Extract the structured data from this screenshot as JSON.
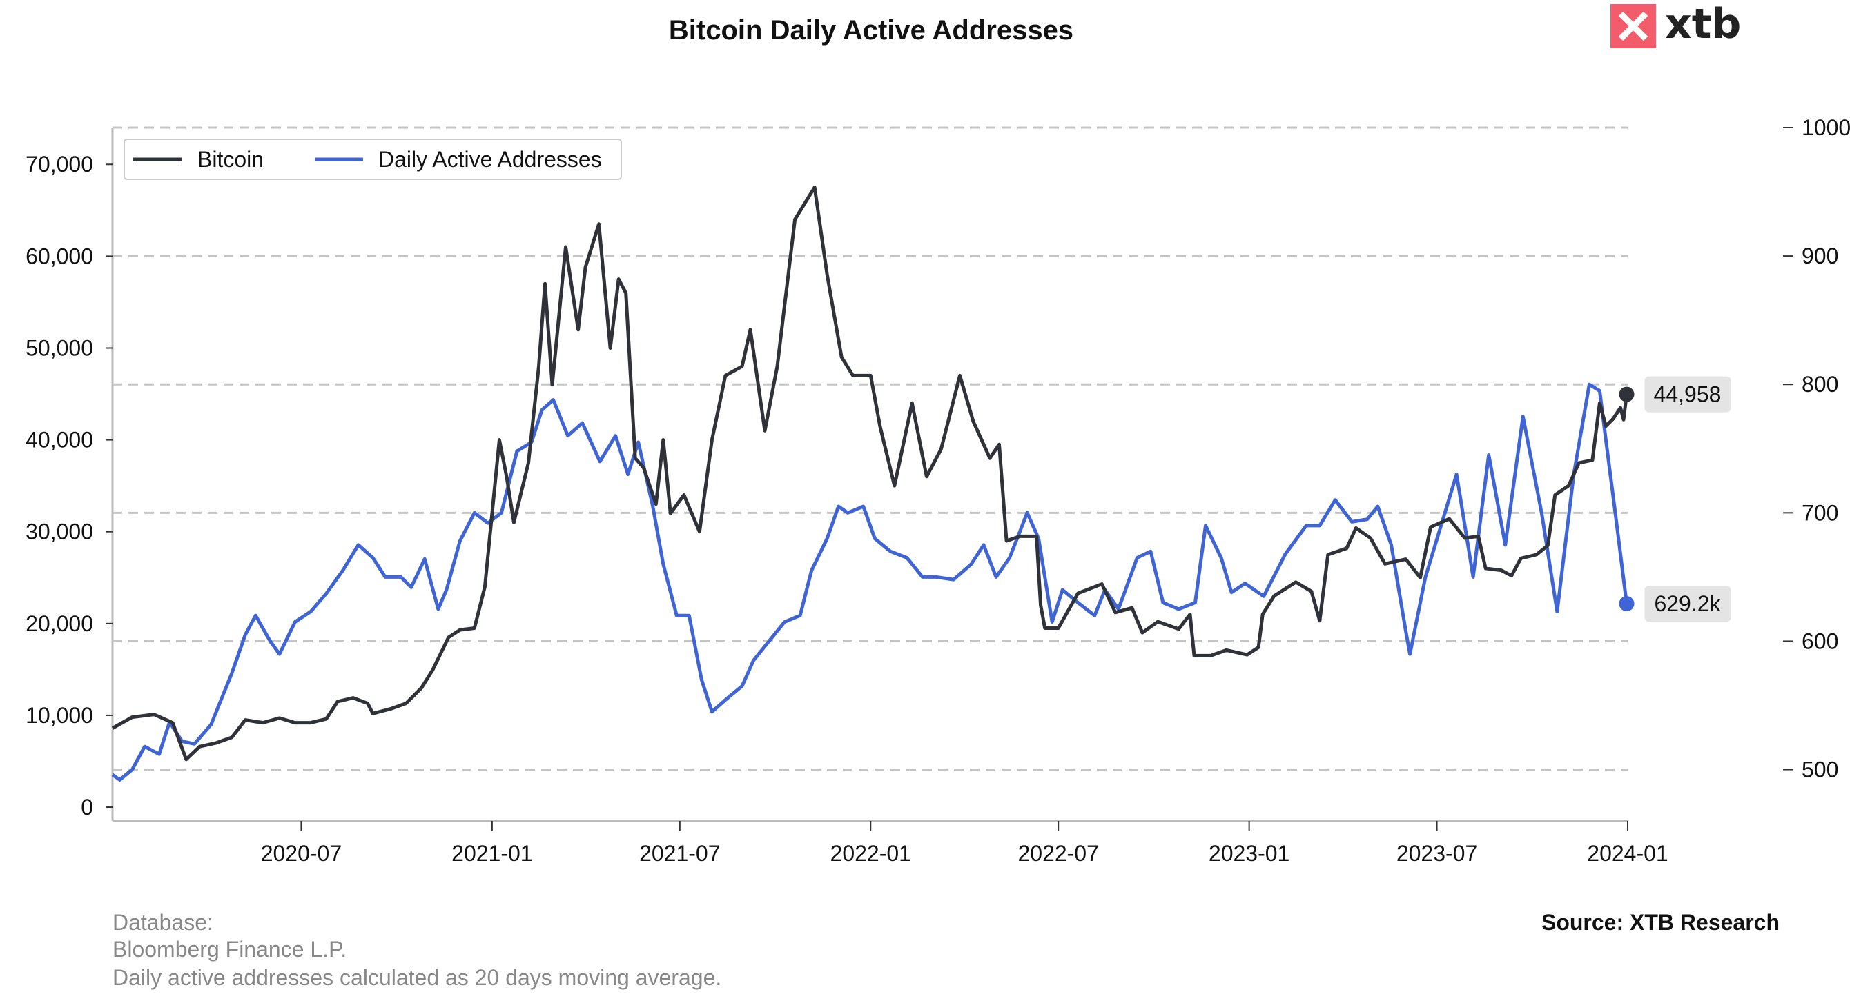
{
  "chart_data": {
    "type": "line",
    "title": "Bitcoin Daily Active Addresses",
    "x_ticks": [
      "2020-07",
      "2021-01",
      "2021-07",
      "2022-01",
      "2022-07",
      "2023-01",
      "2023-07",
      "2024-01"
    ],
    "y_left": {
      "ylim": [
        -1500,
        74000
      ],
      "ticks": [
        0,
        10000,
        20000,
        30000,
        40000,
        50000,
        60000,
        70000
      ],
      "tick_labels": [
        "0",
        "10,000",
        "20,000",
        "30,000",
        "40,000",
        "50,000",
        "60,000",
        "70,000"
      ]
    },
    "y_right": {
      "ylim": [
        460,
        1000
      ],
      "ticks": [
        500,
        600,
        700,
        800,
        900,
        1000
      ],
      "tick_labels": [
        "500",
        "600",
        "700",
        "800",
        "900",
        "1000"
      ]
    },
    "grid": {
      "horizontal": true,
      "style": "dashed"
    },
    "legend_position": "top-left",
    "series": [
      {
        "name": "Bitcoin",
        "axis": "left",
        "color": "#2f3238",
        "points": [
          [
            "2020-01-01",
            8600
          ],
          [
            "2020-01-20",
            9800
          ],
          [
            "2020-02-10",
            10100
          ],
          [
            "2020-02-28",
            9200
          ],
          [
            "2020-03-12",
            5200
          ],
          [
            "2020-03-25",
            6600
          ],
          [
            "2020-04-10",
            7000
          ],
          [
            "2020-04-25",
            7600
          ],
          [
            "2020-05-08",
            9500
          ],
          [
            "2020-05-25",
            9200
          ],
          [
            "2020-06-10",
            9700
          ],
          [
            "2020-06-25",
            9200
          ],
          [
            "2020-07-10",
            9200
          ],
          [
            "2020-07-25",
            9600
          ],
          [
            "2020-08-05",
            11500
          ],
          [
            "2020-08-20",
            11900
          ],
          [
            "2020-09-03",
            11300
          ],
          [
            "2020-09-08",
            10200
          ],
          [
            "2020-09-25",
            10700
          ],
          [
            "2020-10-10",
            11300
          ],
          [
            "2020-10-25",
            13000
          ],
          [
            "2020-11-05",
            15000
          ],
          [
            "2020-11-20",
            18500
          ],
          [
            "2020-12-01",
            19300
          ],
          [
            "2020-12-15",
            19500
          ],
          [
            "2020-12-25",
            24000
          ],
          [
            "2021-01-08",
            40000
          ],
          [
            "2021-01-15",
            36000
          ],
          [
            "2021-01-22",
            31000
          ],
          [
            "2021-02-05",
            37500
          ],
          [
            "2021-02-15",
            48000
          ],
          [
            "2021-02-21",
            57000
          ],
          [
            "2021-02-28",
            46000
          ],
          [
            "2021-03-13",
            61000
          ],
          [
            "2021-03-25",
            52000
          ],
          [
            "2021-04-01",
            58800
          ],
          [
            "2021-04-14",
            63500
          ],
          [
            "2021-04-25",
            50000
          ],
          [
            "2021-05-03",
            57500
          ],
          [
            "2021-05-10",
            56000
          ],
          [
            "2021-05-19",
            38000
          ],
          [
            "2021-05-27",
            37000
          ],
          [
            "2021-06-08",
            33000
          ],
          [
            "2021-06-15",
            40000
          ],
          [
            "2021-06-22",
            32000
          ],
          [
            "2021-07-05",
            34000
          ],
          [
            "2021-07-20",
            30000
          ],
          [
            "2021-08-01",
            40000
          ],
          [
            "2021-08-14",
            47000
          ],
          [
            "2021-08-30",
            48000
          ],
          [
            "2021-09-07",
            52000
          ],
          [
            "2021-09-21",
            41000
          ],
          [
            "2021-10-03",
            48000
          ],
          [
            "2021-10-20",
            64000
          ],
          [
            "2021-11-08",
            67500
          ],
          [
            "2021-11-20",
            58000
          ],
          [
            "2021-12-04",
            49000
          ],
          [
            "2021-12-15",
            47000
          ],
          [
            "2022-01-01",
            47000
          ],
          [
            "2022-01-10",
            41500
          ],
          [
            "2022-01-24",
            35000
          ],
          [
            "2022-02-10",
            44000
          ],
          [
            "2022-02-24",
            36000
          ],
          [
            "2022-03-10",
            39000
          ],
          [
            "2022-03-28",
            47000
          ],
          [
            "2022-04-10",
            42000
          ],
          [
            "2022-04-26",
            38000
          ],
          [
            "2022-05-05",
            39500
          ],
          [
            "2022-05-12",
            29000
          ],
          [
            "2022-05-25",
            29500
          ],
          [
            "2022-06-10",
            29500
          ],
          [
            "2022-06-14",
            22000
          ],
          [
            "2022-06-18",
            19500
          ],
          [
            "2022-07-01",
            19500
          ],
          [
            "2022-07-20",
            23300
          ],
          [
            "2022-08-12",
            24300
          ],
          [
            "2022-08-25",
            21200
          ],
          [
            "2022-09-10",
            21700
          ],
          [
            "2022-09-20",
            19000
          ],
          [
            "2022-10-05",
            20200
          ],
          [
            "2022-10-25",
            19400
          ],
          [
            "2022-11-05",
            21000
          ],
          [
            "2022-11-09",
            16500
          ],
          [
            "2022-11-25",
            16500
          ],
          [
            "2022-12-10",
            17100
          ],
          [
            "2022-12-30",
            16600
          ],
          [
            "2023-01-10",
            17400
          ],
          [
            "2023-01-14",
            21000
          ],
          [
            "2023-01-25",
            23000
          ],
          [
            "2023-02-15",
            24500
          ],
          [
            "2023-03-02",
            23500
          ],
          [
            "2023-03-10",
            20300
          ],
          [
            "2023-03-18",
            27500
          ],
          [
            "2023-04-05",
            28200
          ],
          [
            "2023-04-14",
            30400
          ],
          [
            "2023-04-28",
            29300
          ],
          [
            "2023-05-12",
            26500
          ],
          [
            "2023-06-01",
            27000
          ],
          [
            "2023-06-15",
            25000
          ],
          [
            "2023-06-25",
            30500
          ],
          [
            "2023-07-13",
            31400
          ],
          [
            "2023-07-28",
            29300
          ],
          [
            "2023-08-10",
            29500
          ],
          [
            "2023-08-17",
            26000
          ],
          [
            "2023-09-01",
            25800
          ],
          [
            "2023-09-11",
            25200
          ],
          [
            "2023-09-20",
            27100
          ],
          [
            "2023-10-05",
            27500
          ],
          [
            "2023-10-16",
            28500
          ],
          [
            "2023-10-23",
            34000
          ],
          [
            "2023-11-05",
            35000
          ],
          [
            "2023-11-15",
            37500
          ],
          [
            "2023-11-28",
            37800
          ],
          [
            "2023-12-05",
            44000
          ],
          [
            "2023-12-11",
            41500
          ],
          [
            "2023-12-18",
            42300
          ],
          [
            "2023-12-25",
            43500
          ],
          [
            "2023-12-28",
            42200
          ],
          [
            "2023-12-31",
            44958
          ]
        ]
      },
      {
        "name": "Daily Active Addresses",
        "axis": "right",
        "color": "#3e64d6",
        "points": [
          [
            "2020-01-01",
            496
          ],
          [
            "2020-01-08",
            492
          ],
          [
            "2020-01-20",
            500
          ],
          [
            "2020-02-01",
            518
          ],
          [
            "2020-02-15",
            512
          ],
          [
            "2020-02-25",
            537
          ],
          [
            "2020-03-08",
            522
          ],
          [
            "2020-03-20",
            520
          ],
          [
            "2020-04-05",
            535
          ],
          [
            "2020-04-25",
            575
          ],
          [
            "2020-05-08",
            605
          ],
          [
            "2020-05-18",
            620
          ],
          [
            "2020-06-01",
            600
          ],
          [
            "2020-06-10",
            590
          ],
          [
            "2020-06-25",
            615
          ],
          [
            "2020-07-10",
            623
          ],
          [
            "2020-07-25",
            637
          ],
          [
            "2020-08-10",
            655
          ],
          [
            "2020-08-25",
            675
          ],
          [
            "2020-09-08",
            665
          ],
          [
            "2020-09-20",
            650
          ],
          [
            "2020-10-05",
            650
          ],
          [
            "2020-10-15",
            642
          ],
          [
            "2020-10-28",
            664
          ],
          [
            "2020-11-10",
            625
          ],
          [
            "2020-11-18",
            640
          ],
          [
            "2020-12-01",
            678
          ],
          [
            "2020-12-15",
            700
          ],
          [
            "2020-12-28",
            692
          ],
          [
            "2021-01-10",
            700
          ],
          [
            "2021-01-25",
            748
          ],
          [
            "2021-02-08",
            755
          ],
          [
            "2021-02-18",
            780
          ],
          [
            "2021-03-01",
            788
          ],
          [
            "2021-03-15",
            760
          ],
          [
            "2021-03-29",
            770
          ],
          [
            "2021-04-15",
            740
          ],
          [
            "2021-04-30",
            760
          ],
          [
            "2021-05-12",
            730
          ],
          [
            "2021-05-22",
            755
          ],
          [
            "2021-06-05",
            705
          ],
          [
            "2021-06-15",
            660
          ],
          [
            "2021-06-28",
            620
          ],
          [
            "2021-07-10",
            620
          ],
          [
            "2021-07-22",
            570
          ],
          [
            "2021-08-01",
            545
          ],
          [
            "2021-08-15",
            555
          ],
          [
            "2021-08-30",
            565
          ],
          [
            "2021-09-10",
            585
          ],
          [
            "2021-09-25",
            600
          ],
          [
            "2021-10-10",
            615
          ],
          [
            "2021-10-25",
            620
          ],
          [
            "2021-11-05",
            655
          ],
          [
            "2021-11-20",
            680
          ],
          [
            "2021-12-01",
            705
          ],
          [
            "2021-12-10",
            700
          ],
          [
            "2021-12-25",
            705
          ],
          [
            "2022-01-05",
            680
          ],
          [
            "2022-01-20",
            670
          ],
          [
            "2022-02-05",
            665
          ],
          [
            "2022-02-20",
            650
          ],
          [
            "2022-03-05",
            650
          ],
          [
            "2022-03-22",
            648
          ],
          [
            "2022-04-08",
            660
          ],
          [
            "2022-04-20",
            675
          ],
          [
            "2022-05-02",
            650
          ],
          [
            "2022-05-15",
            665
          ],
          [
            "2022-06-01",
            700
          ],
          [
            "2022-06-12",
            680
          ],
          [
            "2022-06-25",
            615
          ],
          [
            "2022-07-05",
            640
          ],
          [
            "2022-07-20",
            630
          ],
          [
            "2022-08-05",
            620
          ],
          [
            "2022-08-15",
            640
          ],
          [
            "2022-08-28",
            625
          ],
          [
            "2022-09-15",
            665
          ],
          [
            "2022-09-28",
            670
          ],
          [
            "2022-10-10",
            630
          ],
          [
            "2022-10-25",
            625
          ],
          [
            "2022-11-10",
            630
          ],
          [
            "2022-11-20",
            690
          ],
          [
            "2022-12-05",
            665
          ],
          [
            "2022-12-15",
            638
          ],
          [
            "2022-12-28",
            645
          ],
          [
            "2023-01-15",
            635
          ],
          [
            "2023-02-05",
            668
          ],
          [
            "2023-02-25",
            690
          ],
          [
            "2023-03-10",
            690
          ],
          [
            "2023-03-25",
            710
          ],
          [
            "2023-04-10",
            693
          ],
          [
            "2023-04-25",
            695
          ],
          [
            "2023-05-05",
            705
          ],
          [
            "2023-05-18",
            675
          ],
          [
            "2023-06-01",
            608
          ],
          [
            "2023-06-05",
            590
          ],
          [
            "2023-06-20",
            650
          ],
          [
            "2023-07-05",
            690
          ],
          [
            "2023-07-20",
            730
          ],
          [
            "2023-08-05",
            650
          ],
          [
            "2023-08-20",
            745
          ],
          [
            "2023-09-05",
            675
          ],
          [
            "2023-09-22",
            775
          ],
          [
            "2023-10-10",
            700
          ],
          [
            "2023-10-25",
            623
          ],
          [
            "2023-11-10",
            730
          ],
          [
            "2023-11-25",
            800
          ],
          [
            "2023-12-05",
            795
          ],
          [
            "2023-12-12",
            750
          ],
          [
            "2023-12-20",
            700
          ],
          [
            "2023-12-31",
            629.2
          ]
        ]
      }
    ],
    "end_labels": [
      {
        "series": "Bitcoin",
        "text": "44,958"
      },
      {
        "series": "Daily Active Addresses",
        "text": "629.2k"
      }
    ]
  },
  "footer": {
    "database_label": "Database:",
    "database_value": "Bloomberg Finance L.P.",
    "note": "Daily active addresses calculated as 20 days moving average.",
    "source": "Source: XTB Research"
  },
  "logo": {
    "text": "xtb",
    "color": "#f25c6b"
  }
}
